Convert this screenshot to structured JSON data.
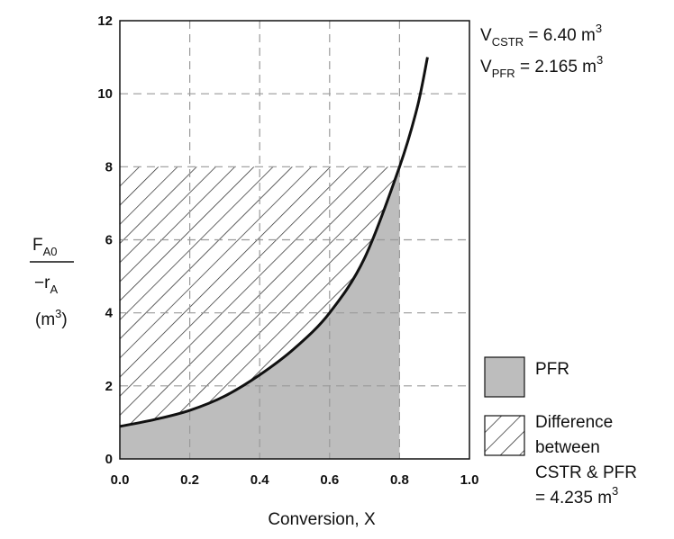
{
  "chart_data": {
    "type": "area",
    "xlabel": "Conversion, X",
    "ylabel": {
      "numerator_main": "F",
      "numerator_sub": "A0",
      "denominator_main": "−r",
      "denominator_sub": "A",
      "units_open": "(m",
      "units_sup": "3",
      "units_close": ")"
    },
    "xlim": [
      0,
      1.0
    ],
    "ylim": [
      0,
      12
    ],
    "x_ticks": [
      {
        "value": 0.0,
        "label": "0.0"
      },
      {
        "value": 0.2,
        "label": "0.2"
      },
      {
        "value": 0.4,
        "label": "0.4"
      },
      {
        "value": 0.6,
        "label": "0.6"
      },
      {
        "value": 0.8,
        "label": "0.8"
      },
      {
        "value": 1.0,
        "label": "1.0"
      }
    ],
    "y_ticks": [
      {
        "value": 0,
        "label": "0"
      },
      {
        "value": 2,
        "label": "2"
      },
      {
        "value": 4,
        "label": "4"
      },
      {
        "value": 6,
        "label": "6"
      },
      {
        "value": 8,
        "label": "8"
      },
      {
        "value": 10,
        "label": "10"
      },
      {
        "value": 12,
        "label": "12"
      }
    ],
    "grid": true,
    "curve": {
      "x": [
        0.0,
        0.1,
        0.2,
        0.3,
        0.4,
        0.5,
        0.6,
        0.7,
        0.8,
        0.85,
        0.88
      ],
      "y": [
        0.89,
        1.08,
        1.33,
        1.72,
        2.3,
        3.03,
        4.0,
        5.5,
        8.0,
        9.6,
        11.0
      ]
    },
    "pfr_region": {
      "x_from": 0.0,
      "x_to": 0.8,
      "color": "#bdbdbd"
    },
    "cstr_rectangle": {
      "x_from": 0.0,
      "x_to": 0.8,
      "y_top": 8.0
    },
    "annotations": [
      {
        "main": "V",
        "sub": "CSTR",
        "rest": " = 6.40 m",
        "sup": "3"
      },
      {
        "main": "V",
        "sub": "PFR",
        "rest": " = 2.165 m",
        "sup": "3"
      }
    ],
    "legend": {
      "placement": "right",
      "items": [
        {
          "type": "solid",
          "color": "#bdbdbd",
          "lines": [
            "PFR"
          ]
        },
        {
          "type": "hatch",
          "lines": [
            "Difference",
            "between",
            "CSTR & PFR"
          ],
          "last_line_main": "= 4.235 m",
          "last_line_sup": "3"
        }
      ]
    }
  }
}
